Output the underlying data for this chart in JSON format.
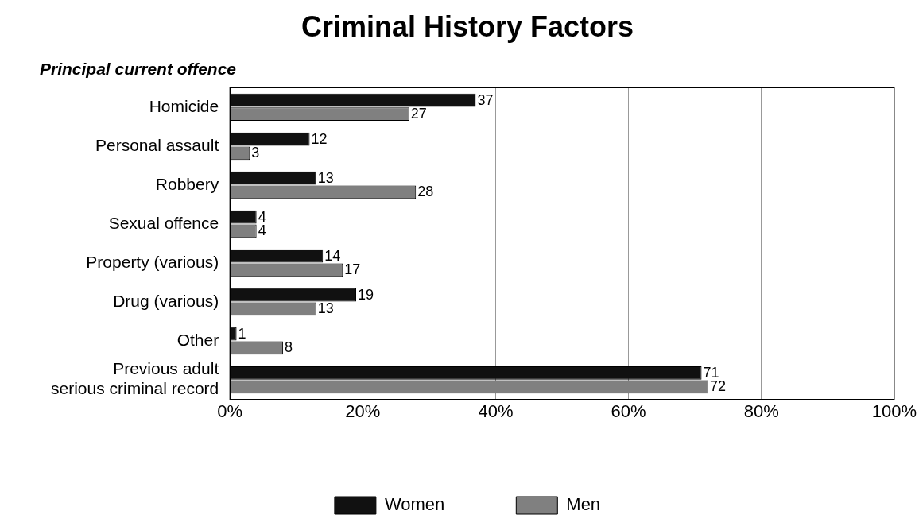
{
  "chart_data": {
    "type": "bar",
    "orientation": "horizontal",
    "title": "Criminal History Factors",
    "subtitle": "Principal current offence",
    "categories": [
      "Homicide",
      "Personal assault",
      "Robbery",
      "Sexual offence",
      "Property (various)",
      "Drug (various)",
      "Other",
      "Previous adult\nserious criminal record"
    ],
    "series": [
      {
        "name": "Women",
        "color": "#111111",
        "values": [
          37,
          12,
          13,
          4,
          14,
          19,
          1,
          71
        ]
      },
      {
        "name": "Men",
        "color": "#808080",
        "values": [
          27,
          3,
          28,
          4,
          17,
          13,
          8,
          72
        ]
      }
    ],
    "xlim": [
      0,
      100
    ],
    "xticks": [
      {
        "value": 0,
        "label": "0%"
      },
      {
        "value": 20,
        "label": "20%"
      },
      {
        "value": 40,
        "label": "40%"
      },
      {
        "value": 60,
        "label": "60%"
      },
      {
        "value": 80,
        "label": "80%"
      },
      {
        "value": 100,
        "label": "100%"
      }
    ],
    "grid": "x",
    "legend": "bottom",
    "data_labels": true
  }
}
